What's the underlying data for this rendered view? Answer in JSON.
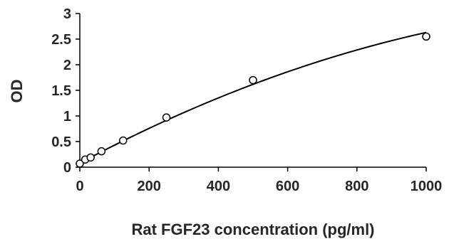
{
  "chart_data": {
    "type": "scatter",
    "title": "",
    "xlabel": "Rat FGF23 concentration (pg/ml)",
    "ylabel": "OD",
    "xlim": [
      0,
      1000
    ],
    "ylim": [
      0,
      3
    ],
    "x_ticks": [
      "0",
      "200",
      "400",
      "600",
      "800",
      "1000"
    ],
    "y_ticks": [
      "0",
      "0.5",
      "1",
      "1.5",
      "2",
      "2.5",
      "3"
    ],
    "grid": false,
    "legend": "none",
    "colors": {
      "axis": "#000000",
      "curve": "#000000",
      "marker_edge": "#000000",
      "marker_fill": "#ffffff",
      "text": "#262626"
    },
    "series": [
      {
        "x": [
          0,
          15.6,
          31.25,
          62.5,
          125,
          250,
          500,
          1000
        ],
        "y": [
          0.07,
          0.15,
          0.19,
          0.31,
          0.52,
          0.97,
          1.7,
          2.55
        ]
      }
    ],
    "fit_curve": {
      "type": "polynomial",
      "coefficients": [
        0.08,
        0.0036,
        -1.05e-06
      ]
    }
  }
}
